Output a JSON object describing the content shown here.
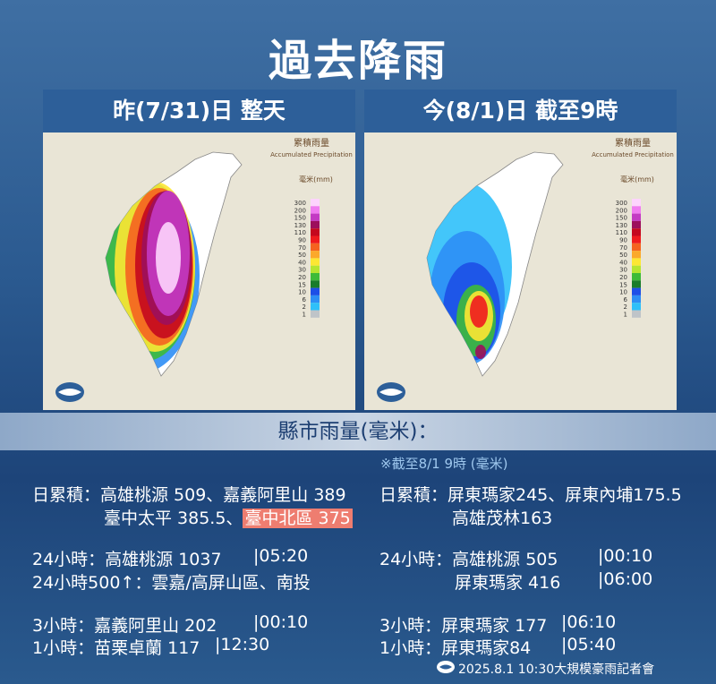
{
  "title": "過去降雨",
  "panels": [
    {
      "heading": "昨(7/31)日 整天"
    },
    {
      "heading": "今(8/1)日 截至9時"
    }
  ],
  "map_legend": {
    "title": "累積雨量",
    "subtitle": "Accumulated Precipitation",
    "unit": "毫米(mm)",
    "levels": [
      300,
      200,
      150,
      130,
      110,
      90,
      70,
      50,
      40,
      30,
      20,
      15,
      10,
      6,
      2,
      1
    ]
  },
  "section_title": "縣市雨量(毫米)：",
  "note": "※截至8/1 9時 (毫米)",
  "left": [
    {
      "text": "日累積：高雄桃源 509、嘉義阿里山 389"
    },
    {
      "text": "臺中太平 385.5、",
      "highlight": "臺中北區 375"
    },
    {
      "text": "24小時：高雄桃源 1037",
      "time": "|05:20"
    },
    {
      "text": "24小時500↑：雲嘉/高屏山區、南投"
    },
    {
      "text": "3小時：嘉義阿里山 202",
      "time": "|00:10"
    },
    {
      "text": "1小時：苗栗卓蘭 117",
      "time": "|12:30"
    }
  ],
  "right": [
    {
      "text": "日累積：屏東瑪家245、屏東內埔175.5"
    },
    {
      "text": "高雄茂林163"
    },
    {
      "text": "24小時：高雄桃源 505",
      "time": "|00:10"
    },
    {
      "text": "屏東瑪家 416",
      "time": "|06:00"
    },
    {
      "text": "3小時：屏東瑪家 177",
      "time": "|06:10"
    },
    {
      "text": "1小時：屏東瑪家84",
      "time": "|05:40"
    }
  ],
  "footer": "2025.8.1 10:30大規模豪雨記者會"
}
